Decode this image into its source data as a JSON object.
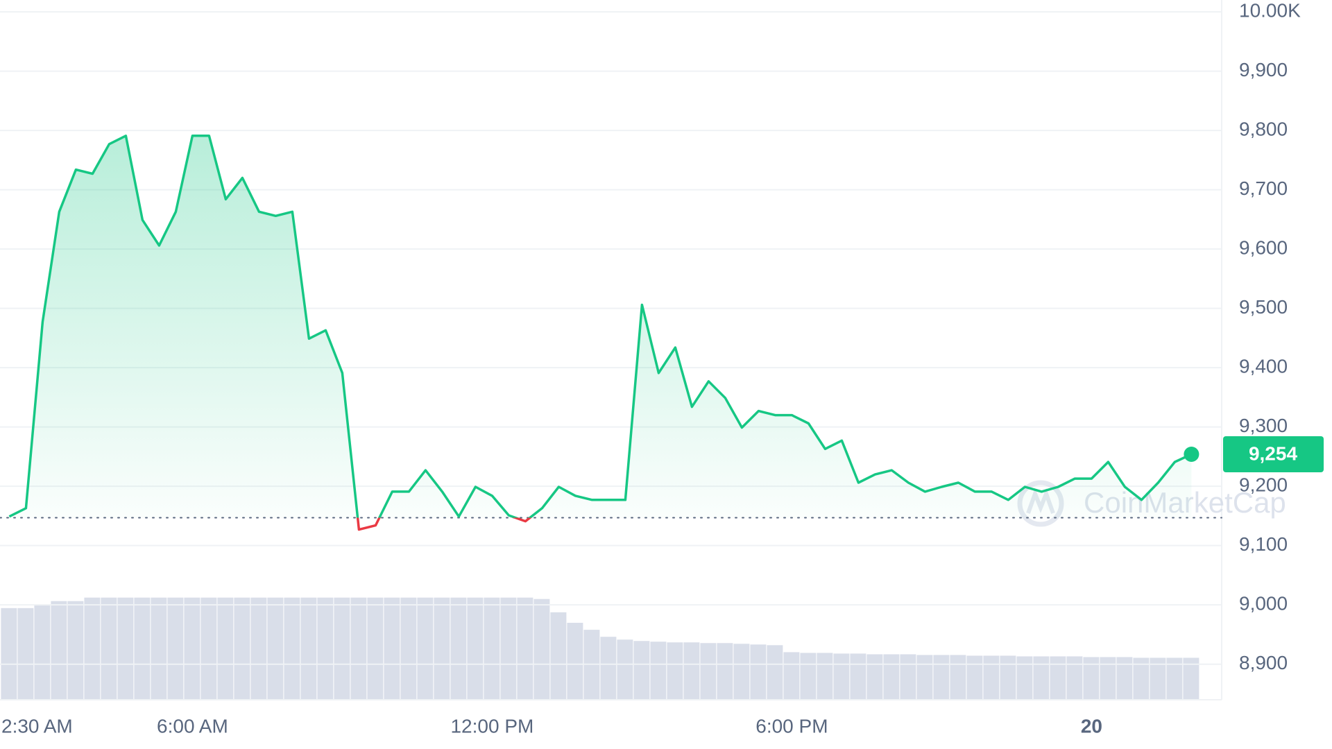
{
  "chart_data": {
    "type": "line",
    "categories": [
      null,
      null,
      "2:30 AM",
      null,
      null,
      null,
      null,
      null,
      null,
      null,
      null,
      "6:00 AM",
      null,
      null,
      null,
      null,
      null,
      null,
      null,
      null,
      null,
      null,
      null,
      null,
      null,
      null,
      null,
      null,
      null,
      "12:00 PM",
      null,
      null,
      null,
      null,
      null,
      null,
      null,
      null,
      null,
      null,
      null,
      null,
      null,
      null,
      null,
      null,
      null,
      "6:00 PM",
      null,
      null,
      null,
      null,
      null,
      null,
      null,
      null,
      null,
      null,
      null,
      null,
      null,
      null,
      null,
      null,
      null,
      "20",
      null,
      null,
      null,
      null,
      null,
      null
    ],
    "series": [
      {
        "values": [
          9149,
          9163,
          9477,
          9663,
          9734,
          9727,
          9777,
          9791,
          9649,
          9606,
          9663,
          9791,
          9791,
          9684,
          9720,
          9663,
          9656,
          9663,
          9449,
          9463,
          9391,
          9127,
          9134,
          9191,
          9191,
          9227,
          9191,
          9149,
          9199,
          9184,
          9151,
          9141,
          9163,
          9199,
          9184,
          9177,
          9177,
          9177,
          9506,
          9391,
          9434,
          9334,
          9377,
          9349,
          9299,
          9327,
          9320,
          9320,
          9306,
          9263,
          9277,
          9206,
          9220,
          9227,
          9206,
          9191,
          9199,
          9206,
          9191,
          9191,
          9177,
          9199,
          9191,
          9199,
          9213,
          9213,
          9241,
          9199,
          9177,
          9206,
          9241,
          9254
        ],
        "color": "#16c784",
        "down_color": "#ea3943"
      },
      {
        "axis": "y2",
        "type": "bar",
        "color": "#cfd6e4",
        "values": [
          13.1,
          13.1,
          13.5,
          14.1,
          14.1,
          14.6,
          14.6,
          14.6,
          14.6,
          14.6,
          14.6,
          14.6,
          14.6,
          14.6,
          14.6,
          14.6,
          14.6,
          14.6,
          14.6,
          14.6,
          14.6,
          14.6,
          14.6,
          14.6,
          14.6,
          14.6,
          14.6,
          14.6,
          14.6,
          14.6,
          14.6,
          14.6,
          14.4,
          12.5,
          11.0,
          10.0,
          9.0,
          8.6,
          8.4,
          8.3,
          8.2,
          8.2,
          8.1,
          8.1,
          8.0,
          7.9,
          7.8,
          6.8,
          6.7,
          6.7,
          6.6,
          6.6,
          6.5,
          6.5,
          6.5,
          6.4,
          6.4,
          6.4,
          6.3,
          6.3,
          6.3,
          6.2,
          6.2,
          6.2,
          6.2,
          6.1,
          6.1,
          6.1,
          6.0,
          6.0,
          6.0,
          6.0
        ]
      }
    ],
    "baseline": 9147,
    "current_price": {
      "value": 9254,
      "label": "9,254"
    },
    "watermark": "CoinMarketCap",
    "ylim": [
      8840,
      10020
    ],
    "y2lim": [
      0,
      100
    ],
    "yticks": [
      {
        "value": 8900,
        "label": "8,900"
      },
      {
        "value": 9000,
        "label": "9,000"
      },
      {
        "value": 9100,
        "label": "9,100"
      },
      {
        "value": 9200,
        "label": "9,200"
      },
      {
        "value": 9300,
        "label": "9,300"
      },
      {
        "value": 9400,
        "label": "9,400"
      },
      {
        "value": 9500,
        "label": "9,500"
      },
      {
        "value": 9600,
        "label": "9,600"
      },
      {
        "value": 9700,
        "label": "9,700"
      },
      {
        "value": 9800,
        "label": "9,800"
      },
      {
        "value": 9900,
        "label": "9,900"
      },
      {
        "value": 10000,
        "label": "10.00K"
      }
    ],
    "grid": true
  }
}
